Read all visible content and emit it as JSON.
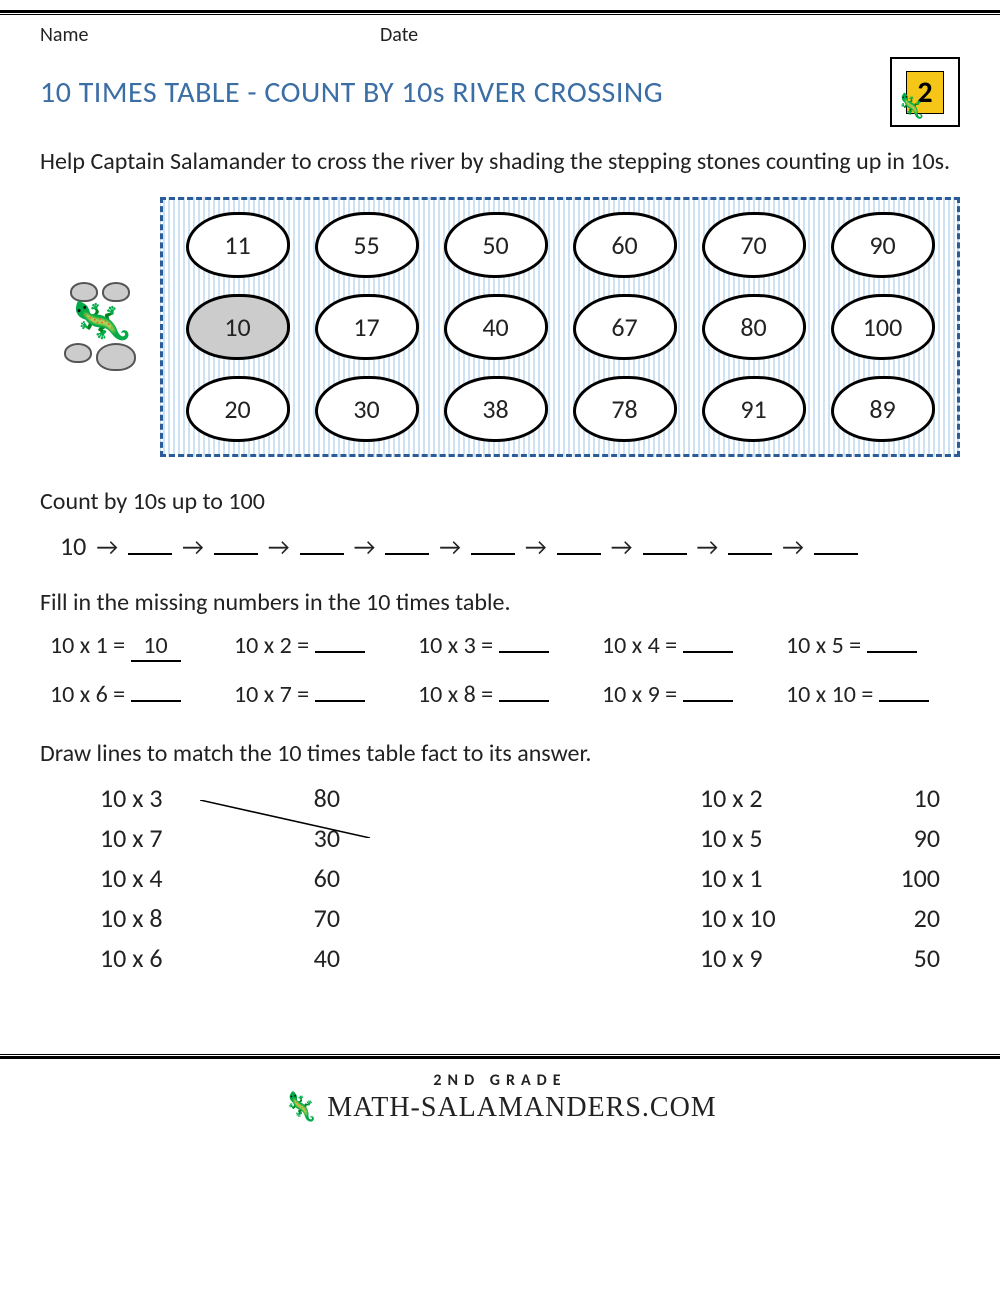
{
  "header": {
    "name_label": "Name",
    "date_label": "Date"
  },
  "title": "10 TIMES TABLE - COUNT BY 10s RIVER CROSSING",
  "logo": {
    "grade_digit": "2"
  },
  "instructions": "Help Captain Salamander to cross the river by shading the stepping stones counting up in 10s.",
  "river": {
    "rows": [
      {
        "stones": [
          {
            "v": "11"
          },
          {
            "v": "55"
          },
          {
            "v": "50"
          },
          {
            "v": "60"
          },
          {
            "v": "70"
          },
          {
            "v": "90"
          }
        ]
      },
      {
        "stones": [
          {
            "v": "10",
            "shaded": true
          },
          {
            "v": "17"
          },
          {
            "v": "40"
          },
          {
            "v": "67"
          },
          {
            "v": "80"
          },
          {
            "v": "100"
          }
        ]
      },
      {
        "stones": [
          {
            "v": "20"
          },
          {
            "v": "30"
          },
          {
            "v": "38"
          },
          {
            "v": "78"
          },
          {
            "v": "91"
          },
          {
            "v": "89"
          }
        ]
      }
    ]
  },
  "count_section": {
    "heading": "Count by 10s up to 100",
    "start": "10",
    "arrow": "→",
    "blanks": 9
  },
  "fill_section": {
    "heading": "Fill in the missing numbers in the 10 times table.",
    "items": [
      {
        "q": "10 x 1 =",
        "a": "10"
      },
      {
        "q": "10 x 2 =",
        "a": ""
      },
      {
        "q": "10 x 3 =",
        "a": ""
      },
      {
        "q": "10 x 4 =",
        "a": ""
      },
      {
        "q": "10 x 5 =",
        "a": ""
      },
      {
        "q": "10 x 6 =",
        "a": ""
      },
      {
        "q": "10 x 7 =",
        "a": ""
      },
      {
        "q": "10 x 8 =",
        "a": ""
      },
      {
        "q": "10 x 9 =",
        "a": ""
      },
      {
        "q": "10 x 10 =",
        "a": ""
      }
    ]
  },
  "match_section": {
    "heading": "Draw lines to match the 10 times table fact to its answer.",
    "left": {
      "questions": [
        "10 x 3",
        "10 x 7",
        "10 x 4",
        "10 x 8",
        "10 x 6"
      ],
      "answers": [
        "80",
        "30",
        "60",
        "70",
        "40"
      ]
    },
    "right": {
      "questions": [
        "10 x 2",
        "10 x 5",
        "10 x 1",
        "10 x 10",
        "10 x 9"
      ],
      "answers": [
        "10",
        "90",
        "100",
        "20",
        "50"
      ]
    },
    "example_line": {
      "from_row": 0,
      "to_row": 1
    }
  },
  "footer": {
    "grade": "2ND GRADE",
    "site": "ATH-SALAMANDERS.COM"
  },
  "colors": {
    "title": "#3b6ea5",
    "river_border": "#2a5c9a",
    "river_fill": "#cfe2f3",
    "stone_shaded": "#cccccc",
    "logo_bg": "#f5c518"
  }
}
